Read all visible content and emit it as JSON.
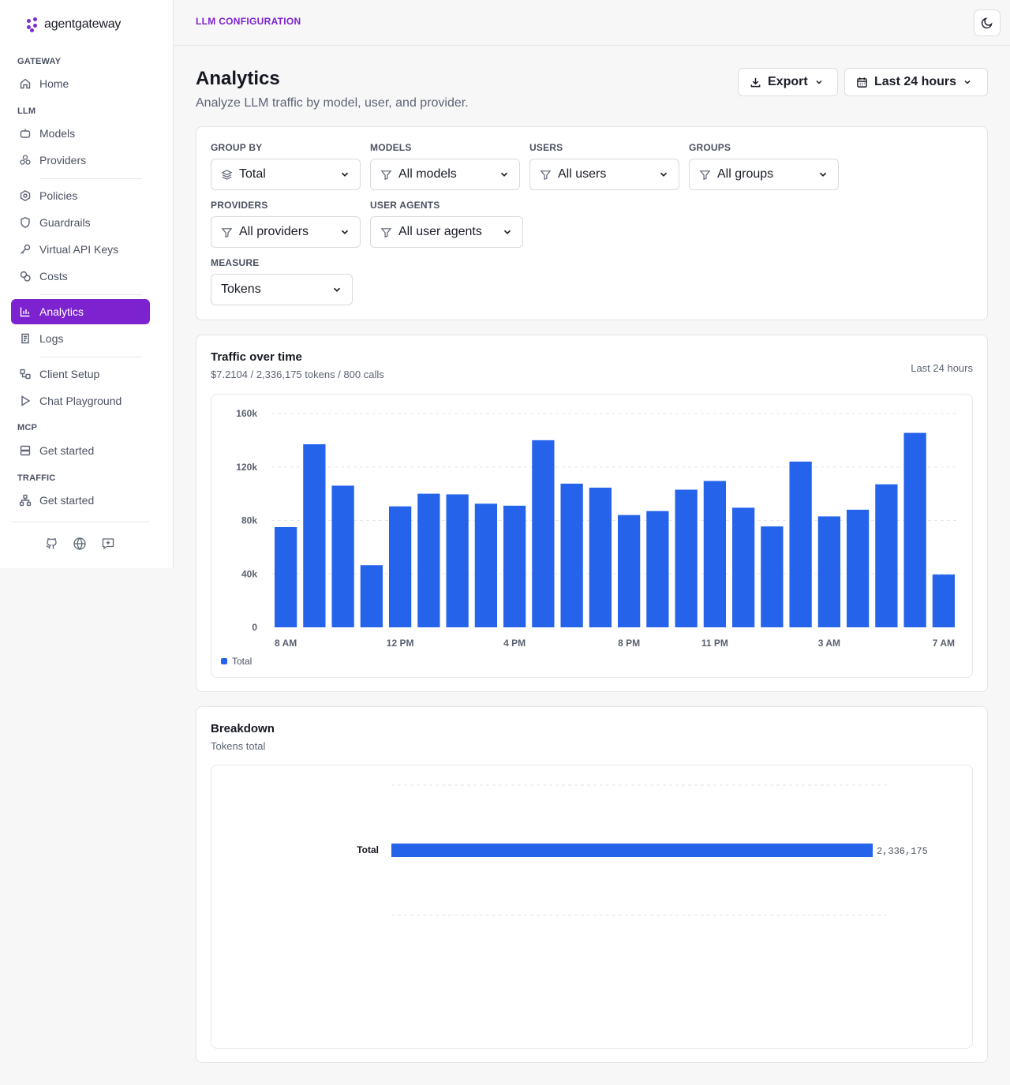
{
  "brand": {
    "name": "agentgateway",
    "accent": "#7c22cf"
  },
  "topbar": {
    "title": "LLM CONFIGURATION",
    "theme_icon": "moon-icon"
  },
  "sidebar": {
    "sections": {
      "gateway": "GATEWAY",
      "llm": "LLM",
      "mcp": "MCP",
      "traffic": "TRAFFIC"
    },
    "items": [
      {
        "label": "Home",
        "icon": "home-icon"
      },
      {
        "label": "Models",
        "icon": "bot-icon"
      },
      {
        "label": "Providers",
        "icon": "providers-icon"
      },
      {
        "label": "Policies",
        "icon": "policy-icon"
      },
      {
        "label": "Guardrails",
        "icon": "shield-icon"
      },
      {
        "label": "Virtual API Keys",
        "icon": "key-icon"
      },
      {
        "label": "Costs",
        "icon": "coins-icon"
      },
      {
        "label": "Analytics",
        "icon": "chart-icon",
        "active": true
      },
      {
        "label": "Logs",
        "icon": "logs-icon"
      },
      {
        "label": "Client Setup",
        "icon": "setup-icon"
      },
      {
        "label": "Chat Playground",
        "icon": "play-icon"
      },
      {
        "label": "Get started",
        "icon": "server-icon"
      },
      {
        "label": "Get started",
        "icon": "network-icon"
      }
    ],
    "footer_icons": [
      "github-icon",
      "globe-icon",
      "feedback-icon"
    ]
  },
  "header": {
    "title": "Analytics",
    "subtitle": "Analyze LLM traffic by model, user, and provider.",
    "export_label": "Export",
    "range_label": "Last 24 hours"
  },
  "filters": {
    "group_by": {
      "label": "GROUP BY",
      "value": "Total"
    },
    "models": {
      "label": "MODELS",
      "value": "All models"
    },
    "users": {
      "label": "USERS",
      "value": "All users"
    },
    "groups": {
      "label": "GROUPS",
      "value": "All groups"
    },
    "providers": {
      "label": "PROVIDERS",
      "value": "All providers"
    },
    "user_agents": {
      "label": "USER AGENTS",
      "value": "All user agents"
    },
    "measure": {
      "label": "MEASURE",
      "value": "Tokens"
    }
  },
  "traffic": {
    "title": "Traffic over time",
    "summary": "$7.2104 / 2,336,175 tokens / 800 calls",
    "range": "Last 24 hours",
    "legend": "Total"
  },
  "breakdown": {
    "title": "Breakdown",
    "subtitle": "Tokens total"
  },
  "chart_data": [
    {
      "type": "bar",
      "title": "Traffic over time",
      "x_tick_labels": [
        "8 AM",
        "12 PM",
        "4 PM",
        "8 PM",
        "11 PM",
        "3 AM",
        "7 AM"
      ],
      "x_tick_index": [
        0,
        4,
        8,
        12,
        15,
        19,
        23
      ],
      "series": [
        {
          "name": "Total",
          "color": "#2563eb",
          "values": [
            75000,
            137000,
            106000,
            46500,
            90500,
            100000,
            99500,
            92500,
            91000,
            140000,
            107500,
            104500,
            84000,
            87000,
            103000,
            109500,
            89500,
            75500,
            124000,
            83000,
            88000,
            107000,
            145500,
            39500
          ]
        }
      ],
      "yticks": [
        "0",
        "40k",
        "80k",
        "120k",
        "160k"
      ],
      "ylim": [
        0,
        160000
      ],
      "grid": true,
      "legend": "bottom-left"
    },
    {
      "type": "bar",
      "orientation": "horizontal",
      "title": "Breakdown",
      "categories": [
        "Total"
      ],
      "values": [
        2336175
      ],
      "value_labels": [
        "2,336,175"
      ],
      "color": "#2563eb"
    }
  ]
}
